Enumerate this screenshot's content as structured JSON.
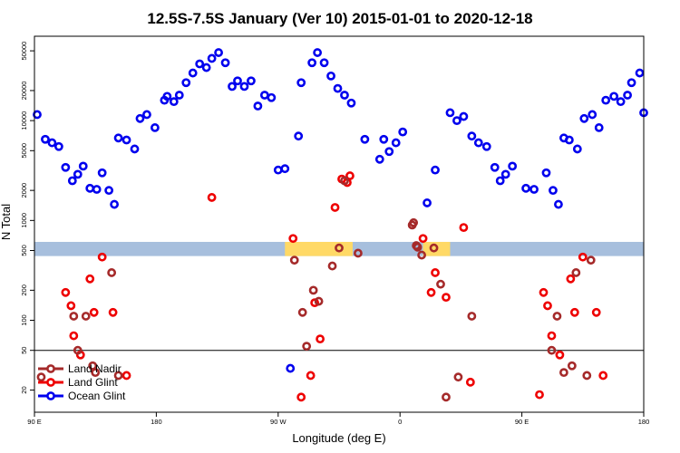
{
  "chart_data": {
    "type": "scatter",
    "title": "12.5S-7.5S January (Ver 10)   2015-01-01 to 2020-12-18",
    "xlabel": "Longitude (deg E)",
    "ylabel": "N Total",
    "xlim": [
      90,
      540
    ],
    "ylog": true,
    "ylim": [
      12,
      70000
    ],
    "x_ticks": [
      {
        "value": 90,
        "label": "90 E"
      },
      {
        "value": 180,
        "label": "180"
      },
      {
        "value": 270,
        "label": "90 W"
      },
      {
        "value": 360,
        "label": "0"
      },
      {
        "value": 450,
        "label": "90 E"
      },
      {
        "value": 540,
        "label": "180"
      }
    ],
    "y_ticks": [
      {
        "value": 20,
        "label": "20"
      },
      {
        "value": 50,
        "label": "50"
      },
      {
        "value": 100,
        "label": "100"
      },
      {
        "value": 200,
        "label": "200"
      },
      {
        "value": 500,
        "label": "500"
      },
      {
        "value": 1000,
        "label": "1000"
      },
      {
        "value": 2000,
        "label": "2000"
      },
      {
        "value": 5000,
        "label": "5000"
      },
      {
        "value": 10000,
        "label": "10000"
      },
      {
        "value": 20000,
        "label": "20000"
      },
      {
        "value": 50000,
        "label": "50000"
      }
    ],
    "reference_line_y": 50,
    "band": {
      "ymin": 440,
      "ymax": 610,
      "fill": "#a7bfdd",
      "land_fill": "#ffd966",
      "land_ranges": [
        [
          275,
          325
        ],
        [
          377,
          397
        ]
      ]
    },
    "legend": {
      "position": "bottom-left",
      "entries": [
        "Land Nadir",
        "Land Glint",
        "Ocean Glint"
      ]
    },
    "series": [
      {
        "name": "Ocean Glint",
        "color": "#0000ee",
        "x": [
          92,
          98,
          103,
          108,
          113,
          118,
          122,
          126,
          131,
          136,
          140,
          145,
          149,
          152,
          158,
          164,
          168,
          173,
          179,
          186,
          188,
          193,
          197,
          202,
          207,
          212,
          217,
          221,
          226,
          231,
          236,
          240,
          245,
          250,
          255,
          260,
          265,
          270,
          275,
          279,
          285,
          287,
          295,
          299,
          304,
          309,
          314,
          319,
          324,
          334,
          345,
          348,
          352,
          357,
          362,
          380,
          386,
          397,
          402,
          407,
          413,
          418,
          424,
          430,
          434,
          438,
          443,
          453,
          459,
          468,
          473,
          477,
          481,
          485,
          491,
          496,
          502,
          507,
          512,
          518,
          523,
          528,
          531,
          537,
          540
        ],
        "y": [
          11500,
          6500,
          6000,
          5500,
          3400,
          2500,
          2900,
          3500,
          2100,
          2050,
          3000,
          2000,
          1450,
          6700,
          6400,
          5200,
          10500,
          11500,
          8500,
          16000,
          17500,
          15500,
          18000,
          24000,
          30000,
          37000,
          34000,
          42000,
          48000,
          38000,
          22000,
          25000,
          22000,
          25000,
          14000,
          18000,
          17000,
          3200,
          3300,
          33,
          7000,
          24000,
          38000,
          48000,
          38000,
          28000,
          21000,
          18000,
          15000,
          6500,
          4100,
          6500,
          4900,
          6000,
          7700,
          1500,
          3200,
          12000,
          10000,
          11000,
          7000,
          6000,
          5500,
          3400,
          2500,
          2900,
          3500,
          2100,
          2050,
          3000,
          2000,
          1450,
          6700,
          6400,
          5200,
          10500,
          11500,
          8500,
          16000,
          17500,
          15500,
          18000,
          24000,
          30000,
          12000
        ]
      },
      {
        "name": "Land Glint",
        "color": "#ee0000",
        "x": [
          113,
          117,
          119,
          124,
          131,
          134,
          140,
          148,
          158,
          221,
          281,
          287,
          294,
          297,
          301,
          312,
          317,
          321,
          323,
          377,
          383,
          386,
          394,
          407,
          412,
          463,
          466,
          469,
          472,
          478,
          486,
          489,
          495,
          505,
          510
        ],
        "y": [
          190,
          140,
          70,
          45,
          260,
          120,
          430,
          120,
          28,
          1700,
          660,
          17,
          28,
          150,
          65,
          1350,
          2600,
          2400,
          2800,
          660,
          190,
          300,
          170,
          850,
          24,
          18,
          190,
          140,
          70,
          45,
          260,
          120,
          430,
          120,
          28
        ]
      },
      {
        "name": "Land Nadir",
        "color": "#a52a2a",
        "x": [
          95,
          119,
          122,
          128,
          133,
          135,
          147,
          152,
          282,
          288,
          291,
          296,
          300,
          310,
          315,
          319,
          329,
          369,
          370,
          372,
          373,
          376,
          385,
          390,
          394,
          403,
          413,
          472,
          476,
          481,
          487,
          490,
          498,
          501
        ],
        "y": [
          27,
          110,
          50,
          110,
          35,
          30,
          300,
          28,
          400,
          120,
          55,
          200,
          155,
          350,
          530,
          2500,
          470,
          900,
          950,
          560,
          540,
          450,
          530,
          230,
          17,
          27,
          110,
          50,
          110,
          30,
          35,
          300,
          28,
          400
        ]
      }
    ]
  }
}
